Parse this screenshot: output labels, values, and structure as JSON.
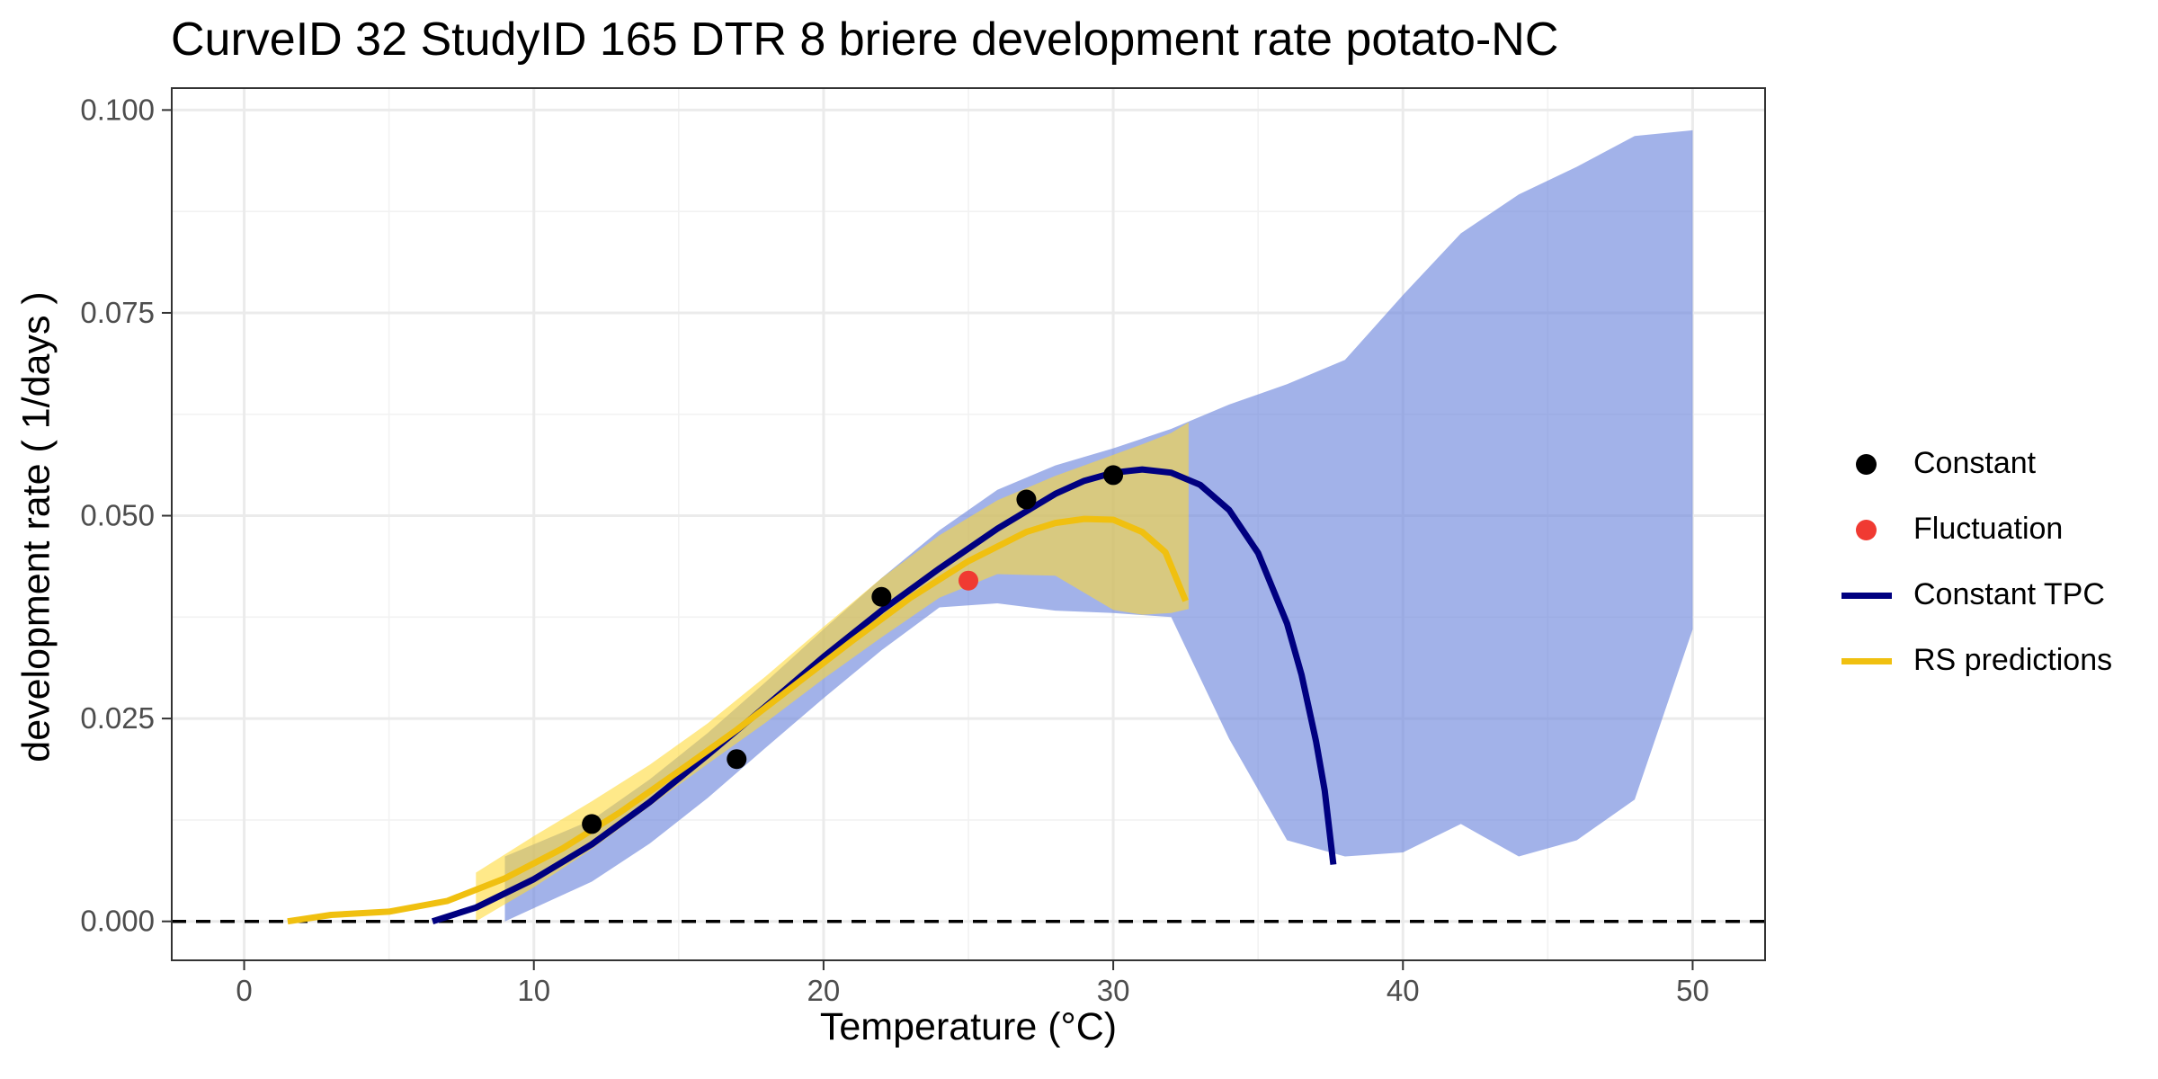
{
  "chart_data": {
    "type": "line",
    "title": "CurveID 32 StudyID 165 DTR 8 briere development rate potato-NC",
    "xlabel": "Temperature (°C)",
    "ylabel": "development rate ( 1/days )",
    "xlim": [
      -2.5,
      52.5
    ],
    "ylim": [
      -0.0048,
      0.1027
    ],
    "x_ticks": [
      0,
      10,
      20,
      30,
      40,
      50
    ],
    "x_tick_labels": [
      "0",
      "10",
      "20",
      "30",
      "40",
      "50"
    ],
    "y_ticks": [
      0.0,
      0.025,
      0.05,
      0.075,
      0.1
    ],
    "y_tick_labels": [
      "0.000",
      "0.025",
      "0.050",
      "0.075",
      "0.100"
    ],
    "grid": true,
    "reference_line": {
      "y": 0,
      "style": "dashed"
    },
    "legend_position": "right",
    "legend": [
      {
        "label": "Constant",
        "kind": "point",
        "color": "#000000"
      },
      {
        "label": "Fluctuation",
        "kind": "point",
        "color": "#f03a32"
      },
      {
        "label": "Constant TPC",
        "kind": "line",
        "color": "#000080"
      },
      {
        "label": "RS predictions",
        "kind": "line",
        "color": "#f0c010"
      }
    ],
    "series": [
      {
        "kind": "points",
        "color": "#000000",
        "x": [
          12,
          17,
          22,
          27,
          30
        ],
        "y": [
          0.012,
          0.02,
          0.04,
          0.052,
          0.055
        ]
      },
      {
        "kind": "points",
        "color": "#f03a32",
        "x": [
          25
        ],
        "y": [
          0.042
        ]
      },
      {
        "kind": "line",
        "color": "#000080",
        "x": [
          6.5,
          8,
          10,
          12,
          14,
          16,
          18,
          20,
          22,
          24,
          26,
          28,
          29,
          30,
          31,
          32,
          33,
          34,
          35,
          36,
          36.5,
          37,
          37.3,
          37.6
        ],
        "y": [
          0.0,
          0.0017,
          0.0052,
          0.0095,
          0.0147,
          0.0205,
          0.0265,
          0.0326,
          0.0383,
          0.0435,
          0.0484,
          0.0527,
          0.0543,
          0.0553,
          0.0557,
          0.0553,
          0.0538,
          0.0507,
          0.0454,
          0.0367,
          0.0304,
          0.0222,
          0.0161,
          0.007
        ]
      },
      {
        "kind": "line",
        "color": "#f0c010",
        "x": [
          1.5,
          3,
          5,
          7,
          9,
          11,
          13,
          15,
          17,
          19,
          21,
          23,
          25,
          27,
          28,
          29,
          30,
          31,
          31.8,
          32.5
        ],
        "y": [
          0.0,
          0.0008,
          0.0012,
          0.0025,
          0.0053,
          0.009,
          0.0135,
          0.0185,
          0.0236,
          0.0291,
          0.0346,
          0.0399,
          0.0444,
          0.048,
          0.0491,
          0.0496,
          0.0495,
          0.048,
          0.0455,
          0.0395
        ]
      },
      {
        "kind": "band",
        "color": "#6d86dd",
        "x": [
          9,
          12,
          14,
          16,
          18,
          20,
          22,
          24,
          26,
          28,
          30,
          32,
          34,
          36,
          38,
          40,
          42,
          44,
          46,
          48,
          50
        ],
        "upper": [
          0.008,
          0.0125,
          0.0175,
          0.0232,
          0.0295,
          0.036,
          0.0423,
          0.0482,
          0.0532,
          0.0562,
          0.0583,
          0.0607,
          0.0637,
          0.0662,
          0.0692,
          0.0772,
          0.0848,
          0.0896,
          0.093,
          0.0968,
          0.0975
        ],
        "lower": [
          0.0,
          0.0049,
          0.0096,
          0.0152,
          0.0214,
          0.0275,
          0.0334,
          0.0387,
          0.0392,
          0.0383,
          0.038,
          0.0375,
          0.0225,
          0.01,
          0.008,
          0.0085,
          0.012,
          0.008,
          0.01,
          0.015,
          0.036
        ]
      },
      {
        "kind": "band",
        "color": "#ffd933",
        "x": [
          8,
          10,
          12,
          14,
          16,
          18,
          20,
          22,
          24,
          26,
          28,
          30,
          31,
          32,
          32.6
        ],
        "upper": [
          0.006,
          0.0105,
          0.0148,
          0.0193,
          0.0244,
          0.0302,
          0.0363,
          0.0423,
          0.0476,
          0.0519,
          0.0549,
          0.0575,
          0.0588,
          0.0602,
          0.0615
        ],
        "lower": [
          0.0,
          0.0042,
          0.0089,
          0.0142,
          0.0194,
          0.0245,
          0.0299,
          0.035,
          0.0399,
          0.0428,
          0.0426,
          0.0384,
          0.0378,
          0.038,
          0.0385
        ]
      }
    ]
  }
}
